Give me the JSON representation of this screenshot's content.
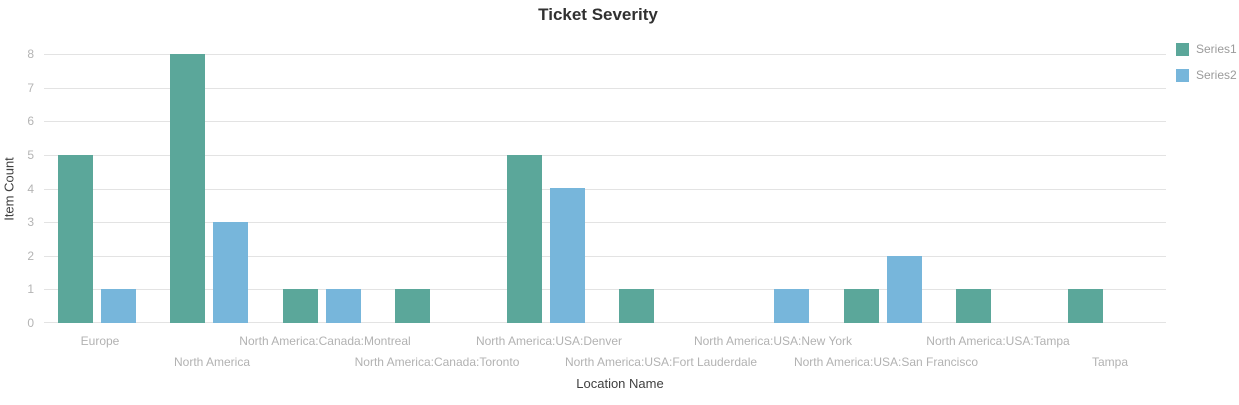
{
  "chart_data": {
    "type": "bar",
    "title": "Ticket Severity",
    "xlabel": "Location Name",
    "ylabel": "Item Count",
    "ylim": [
      0,
      8
    ],
    "yticks": [
      0,
      1,
      2,
      3,
      4,
      5,
      6,
      7,
      8
    ],
    "grid": true,
    "legend_position": "top-right",
    "categories": [
      "Europe",
      "North America",
      "North America:Canada:Montreal",
      "North America:Canada:Toronto",
      "North America:USA:Denver",
      "North America:USA:Fort Lauderdale",
      "North America:USA:New York",
      "North America:USA:San Francisco",
      "North America:USA:Tampa",
      "Tampa"
    ],
    "series": [
      {
        "name": "Series1",
        "color": "#5ba79a",
        "values": [
          5,
          8,
          1,
          1,
          5,
          1,
          0,
          1,
          1,
          1
        ]
      },
      {
        "name": "Series2",
        "color": "#77b6db",
        "values": [
          1,
          3,
          1,
          0,
          4,
          0,
          1,
          2,
          0,
          0
        ]
      }
    ]
  },
  "colors": {
    "grid": "#e3e3e3",
    "tick_label": "#b4b4b4",
    "axis_title": "#404040",
    "title_text": "#313131",
    "legend_text": "#9b9b9b",
    "background": "#ffffff"
  }
}
